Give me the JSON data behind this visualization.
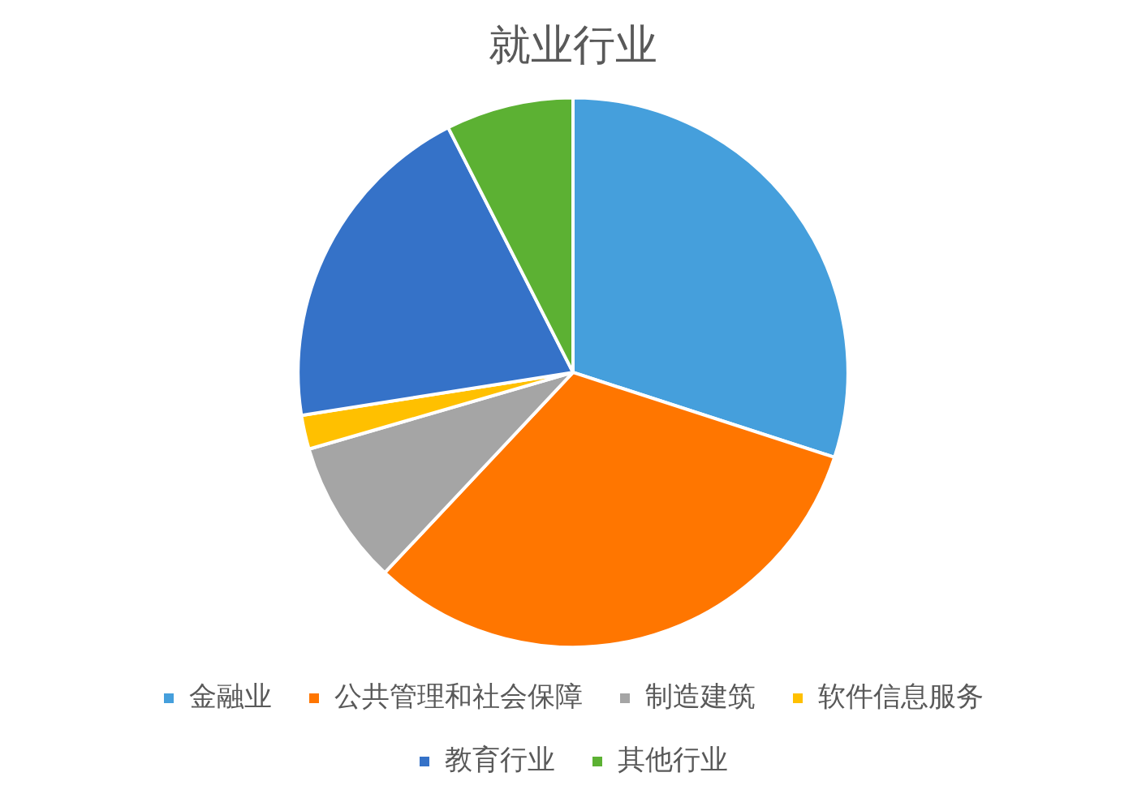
{
  "chart_data": {
    "type": "pie",
    "title": "就业行业",
    "categories": [
      "金融业",
      "公共管理和社会保障",
      "制造建筑",
      "软件信息服务",
      "教育行业",
      "其他行业"
    ],
    "values": [
      30,
      32,
      8.5,
      2,
      20,
      7.5
    ],
    "colors": [
      "#459fdc",
      "#ff7600",
      "#a5a5a5",
      "#ffc000",
      "#3572c8",
      "#5cb133"
    ],
    "legend": "bottom"
  }
}
